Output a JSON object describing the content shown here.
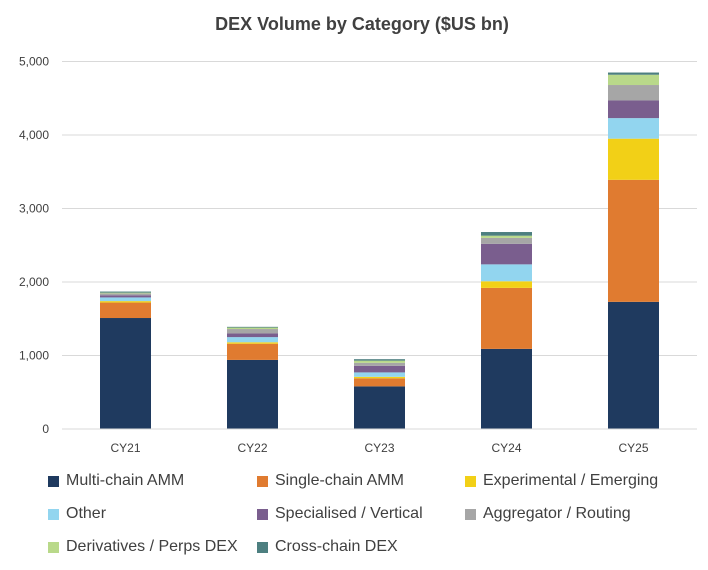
{
  "chart_data": {
    "type": "bar",
    "stacked": true,
    "title": "DEX Volume by Category ($US bn)",
    "xlabel": "",
    "ylabel": "",
    "ylim": [
      0,
      5000
    ],
    "yticks": [
      0,
      1000,
      2000,
      3000,
      4000,
      5000
    ],
    "ytick_labels": [
      "0",
      "1,000",
      "2,000",
      "3,000",
      "4,000",
      "5,000"
    ],
    "categories": [
      "CY21",
      "CY22",
      "CY23",
      "CY24",
      "CY25"
    ],
    "series": [
      {
        "name": "Multi-chain AMM",
        "color": "#1F3A5F",
        "values": [
          1510,
          940,
          580,
          1090,
          1730
        ]
      },
      {
        "name": "Single-chain AMM",
        "color": "#E07B30",
        "values": [
          210,
          220,
          110,
          830,
          1660
        ]
      },
      {
        "name": "Experimental / Emerging",
        "color": "#F2D017",
        "values": [
          20,
          20,
          20,
          90,
          560
        ]
      },
      {
        "name": "Other",
        "color": "#92D5EF",
        "values": [
          50,
          70,
          60,
          230,
          280
        ]
      },
      {
        "name": "Specialised / Vertical",
        "color": "#7A5E8E",
        "values": [
          30,
          50,
          90,
          280,
          240
        ]
      },
      {
        "name": "Aggregator / Routing",
        "color": "#A6A6A6",
        "values": [
          25,
          60,
          40,
          80,
          210
        ]
      },
      {
        "name": "Derivatives / Perps DEX",
        "color": "#B9D98A",
        "values": [
          10,
          20,
          30,
          30,
          140
        ]
      },
      {
        "name": "Cross-chain DEX",
        "color": "#4D7F80",
        "values": [
          15,
          10,
          20,
          50,
          30
        ]
      }
    ],
    "legend_position": "bottom",
    "grid": true
  }
}
